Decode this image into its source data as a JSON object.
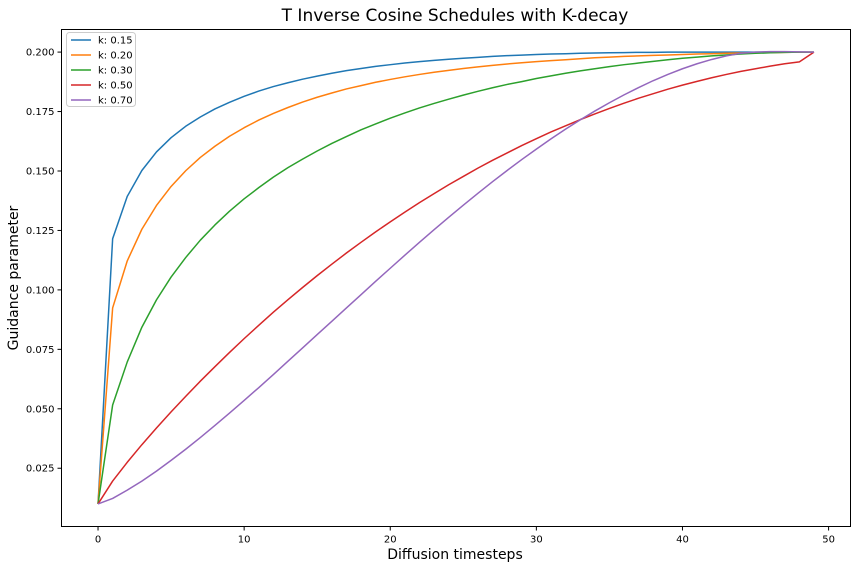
{
  "chart_data": {
    "type": "line",
    "title": "T Inverse Cosine Schedules with K-decay",
    "xlabel": "Diffusion timesteps",
    "ylabel": "Guidance parameter",
    "xlim": [
      -2.5,
      51.5
    ],
    "ylim": [
      0.0005,
      0.2095
    ],
    "xticks": [
      0,
      10,
      20,
      30,
      40,
      50
    ],
    "xtick_labels": [
      "0",
      "10",
      "20",
      "30",
      "40",
      "50"
    ],
    "yticks": [
      0.025,
      0.05,
      0.075,
      0.1,
      0.125,
      0.15,
      0.175,
      0.2
    ],
    "ytick_labels": [
      "0.025",
      "0.050",
      "0.075",
      "0.100",
      "0.125",
      "0.150",
      "0.175",
      "0.200"
    ],
    "grid": false,
    "legend_position": "top-left",
    "x": [
      0,
      1,
      2,
      3,
      4,
      5,
      6,
      7,
      8,
      9,
      10,
      11,
      12,
      13,
      14,
      15,
      16,
      17,
      18,
      19,
      20,
      21,
      22,
      23,
      24,
      25,
      26,
      27,
      28,
      29,
      30,
      31,
      32,
      33,
      34,
      35,
      36,
      37,
      38,
      39,
      40,
      41,
      42,
      43,
      44,
      45,
      46,
      47,
      48,
      49
    ],
    "series": [
      {
        "name": "k: 0.15",
        "color": "#1f77b4",
        "values": [
          0.01,
          0.1215,
          0.1393,
          0.1502,
          0.158,
          0.164,
          0.1688,
          0.1727,
          0.1761,
          0.1789,
          0.1814,
          0.1836,
          0.1855,
          0.1871,
          0.1886,
          0.1899,
          0.1911,
          0.1922,
          0.1931,
          0.194,
          0.1947,
          0.1954,
          0.196,
          0.1965,
          0.197,
          0.1974,
          0.1978,
          0.1982,
          0.1985,
          0.1987,
          0.199,
          0.1992,
          0.1993,
          0.1995,
          0.1996,
          0.1997,
          0.1998,
          0.1999,
          0.1999,
          0.2,
          0.2,
          0.2,
          0.2,
          0.2,
          0.2,
          0.2,
          0.2,
          0.2,
          0.2,
          0.2
        ]
      },
      {
        "name": "k: 0.20",
        "color": "#ff7f0e",
        "values": [
          0.01,
          0.0924,
          0.1122,
          0.1255,
          0.1355,
          0.1435,
          0.1501,
          0.1557,
          0.1604,
          0.1646,
          0.1682,
          0.1714,
          0.1742,
          0.1767,
          0.179,
          0.181,
          0.1828,
          0.1845,
          0.1859,
          0.1873,
          0.1885,
          0.1896,
          0.1906,
          0.1915,
          0.1923,
          0.1931,
          0.1938,
          0.1944,
          0.195,
          0.1955,
          0.196,
          0.1964,
          0.1968,
          0.1972,
          0.1976,
          0.1979,
          0.1982,
          0.1984,
          0.1986,
          0.1988,
          0.199,
          0.1992,
          0.1993,
          0.1995,
          0.1996,
          0.1997,
          0.1998,
          0.1999,
          0.2,
          0.2
        ]
      },
      {
        "name": "k: 0.30",
        "color": "#2ca02c",
        "values": [
          0.01,
          0.0516,
          0.0697,
          0.0843,
          0.0958,
          0.1054,
          0.1136,
          0.1209,
          0.1273,
          0.1331,
          0.1383,
          0.143,
          0.1474,
          0.1514,
          0.155,
          0.1584,
          0.1616,
          0.1645,
          0.1673,
          0.1698,
          0.1722,
          0.1744,
          0.1765,
          0.1784,
          0.1802,
          0.1819,
          0.1835,
          0.185,
          0.1864,
          0.1876,
          0.1889,
          0.19,
          0.1911,
          0.1921,
          0.193,
          0.1939,
          0.1947,
          0.1954,
          0.1961,
          0.1968,
          0.1974,
          0.1979,
          0.1984,
          0.1988,
          0.1992,
          0.1995,
          0.1997,
          0.1999,
          0.2,
          0.2
        ]
      },
      {
        "name": "k: 0.50",
        "color": "#d62728",
        "values": [
          0.01,
          0.0196,
          0.0275,
          0.0349,
          0.0419,
          0.0487,
          0.0552,
          0.0616,
          0.0677,
          0.0737,
          0.0795,
          0.0851,
          0.0906,
          0.0959,
          0.101,
          0.106,
          0.1108,
          0.1155,
          0.12,
          0.1244,
          0.1286,
          0.1327,
          0.1367,
          0.1405,
          0.1442,
          0.1477,
          0.1512,
          0.1545,
          0.1576,
          0.1607,
          0.1636,
          0.1664,
          0.169,
          0.1716,
          0.174,
          0.1763,
          0.1785,
          0.1806,
          0.1825,
          0.1844,
          0.1861,
          0.1877,
          0.1892,
          0.1906,
          0.1919,
          0.193,
          0.1941,
          0.1951,
          0.1959,
          0.2
        ]
      },
      {
        "name": "k: 0.70",
        "color": "#9467bd",
        "values": [
          0.01,
          0.0123,
          0.0158,
          0.0196,
          0.0238,
          0.0283,
          0.033,
          0.0379,
          0.043,
          0.0482,
          0.0535,
          0.0589,
          0.0644,
          0.07,
          0.0756,
          0.0812,
          0.0868,
          0.0924,
          0.098,
          0.1036,
          0.1091,
          0.1146,
          0.12,
          0.1253,
          0.1305,
          0.1356,
          0.1406,
          0.1455,
          0.1502,
          0.1548,
          0.1592,
          0.1635,
          0.1676,
          0.1715,
          0.1752,
          0.1787,
          0.182,
          0.1851,
          0.188,
          0.1906,
          0.193,
          0.1951,
          0.1969,
          0.1984,
          0.1995,
          0.2,
          0.2002,
          0.2002,
          0.2001,
          0.2
        ]
      }
    ]
  }
}
